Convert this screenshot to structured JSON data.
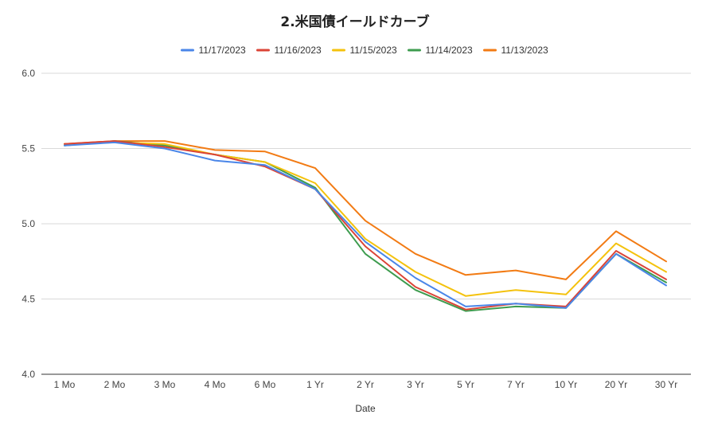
{
  "chart_data": {
    "type": "line",
    "title": "2.米国債イールドカーブ",
    "xlabel": "Date",
    "ylabel": "",
    "categories": [
      "1 Mo",
      "2 Mo",
      "3 Mo",
      "4 Mo",
      "6 Mo",
      "1 Yr",
      "2 Yr",
      "3 Yr",
      "5 Yr",
      "7 Yr",
      "10 Yr",
      "20 Yr",
      "30 Yr"
    ],
    "ylim": [
      4.0,
      6.0
    ],
    "yticks": [
      "4.0",
      "4.5",
      "5.0",
      "5.5",
      "6.0"
    ],
    "grid": true,
    "legend_position": "top",
    "series": [
      {
        "name": "11/17/2023",
        "color": "#4a86e8",
        "values": [
          5.52,
          5.54,
          5.5,
          5.42,
          5.39,
          5.23,
          4.88,
          4.64,
          4.45,
          4.47,
          4.44,
          4.8,
          4.59
        ]
      },
      {
        "name": "11/16/2023",
        "color": "#db4437",
        "values": [
          5.53,
          5.55,
          5.51,
          5.46,
          5.38,
          5.23,
          4.85,
          4.58,
          4.43,
          4.47,
          4.45,
          4.82,
          4.63
        ]
      },
      {
        "name": "11/15/2023",
        "color": "#f4c20d",
        "values": [
          5.53,
          5.54,
          5.53,
          5.46,
          5.41,
          5.27,
          4.9,
          4.68,
          4.52,
          4.56,
          4.53,
          4.87,
          4.68
        ]
      },
      {
        "name": "11/14/2023",
        "color": "#3e9c4f",
        "values": [
          5.52,
          5.55,
          5.52,
          5.46,
          5.41,
          5.24,
          4.8,
          4.56,
          4.42,
          4.45,
          4.44,
          4.8,
          4.61
        ]
      },
      {
        "name": "11/13/2023",
        "color": "#f27b14",
        "values": [
          5.53,
          5.55,
          5.55,
          5.49,
          5.48,
          5.37,
          5.02,
          4.8,
          4.66,
          4.69,
          4.63,
          4.95,
          4.75
        ]
      }
    ]
  }
}
